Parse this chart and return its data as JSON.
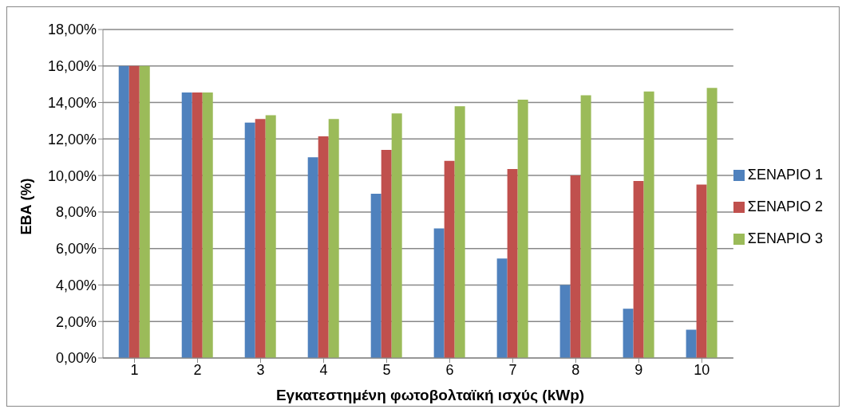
{
  "chart_data": {
    "type": "bar",
    "xlabel": "Εγκατεστημένη φωτοβολταϊκή ισχύς (kWp)",
    "ylabel": "ΕΒΑ (%)",
    "categories": [
      "1",
      "2",
      "3",
      "4",
      "5",
      "6",
      "7",
      "8",
      "9",
      "10"
    ],
    "series": [
      {
        "name": "ΣΕΝΑΡΙΟ 1",
        "color": "#4f81bd",
        "values": [
          16.0,
          14.55,
          12.9,
          11.0,
          9.0,
          7.1,
          5.45,
          4.0,
          2.7,
          1.55
        ]
      },
      {
        "name": "ΣΕΝΑΡΙΟ 2",
        "color": "#c0504d",
        "values": [
          16.0,
          14.55,
          13.1,
          12.15,
          11.4,
          10.8,
          10.35,
          10.0,
          9.7,
          9.5
        ]
      },
      {
        "name": "ΣΕΝΑΡΙΟ 3",
        "color": "#9bbb59",
        "values": [
          16.0,
          14.55,
          13.3,
          13.1,
          13.4,
          13.8,
          14.15,
          14.4,
          14.6,
          14.8
        ]
      }
    ],
    "ylim": [
      0,
      18
    ],
    "yticks": [
      {
        "value": 0,
        "label": "0,00%"
      },
      {
        "value": 2,
        "label": "2,00%"
      },
      {
        "value": 4,
        "label": "4,00%"
      },
      {
        "value": 6,
        "label": "6,00%"
      },
      {
        "value": 8,
        "label": "8,00%"
      },
      {
        "value": 10,
        "label": "10,00%"
      },
      {
        "value": 12,
        "label": "12,00%"
      },
      {
        "value": 14,
        "label": "14,00%"
      },
      {
        "value": 16,
        "label": "16,00%"
      },
      {
        "value": 18,
        "label": "18,00%"
      }
    ],
    "grid": "y",
    "legend": "right"
  }
}
